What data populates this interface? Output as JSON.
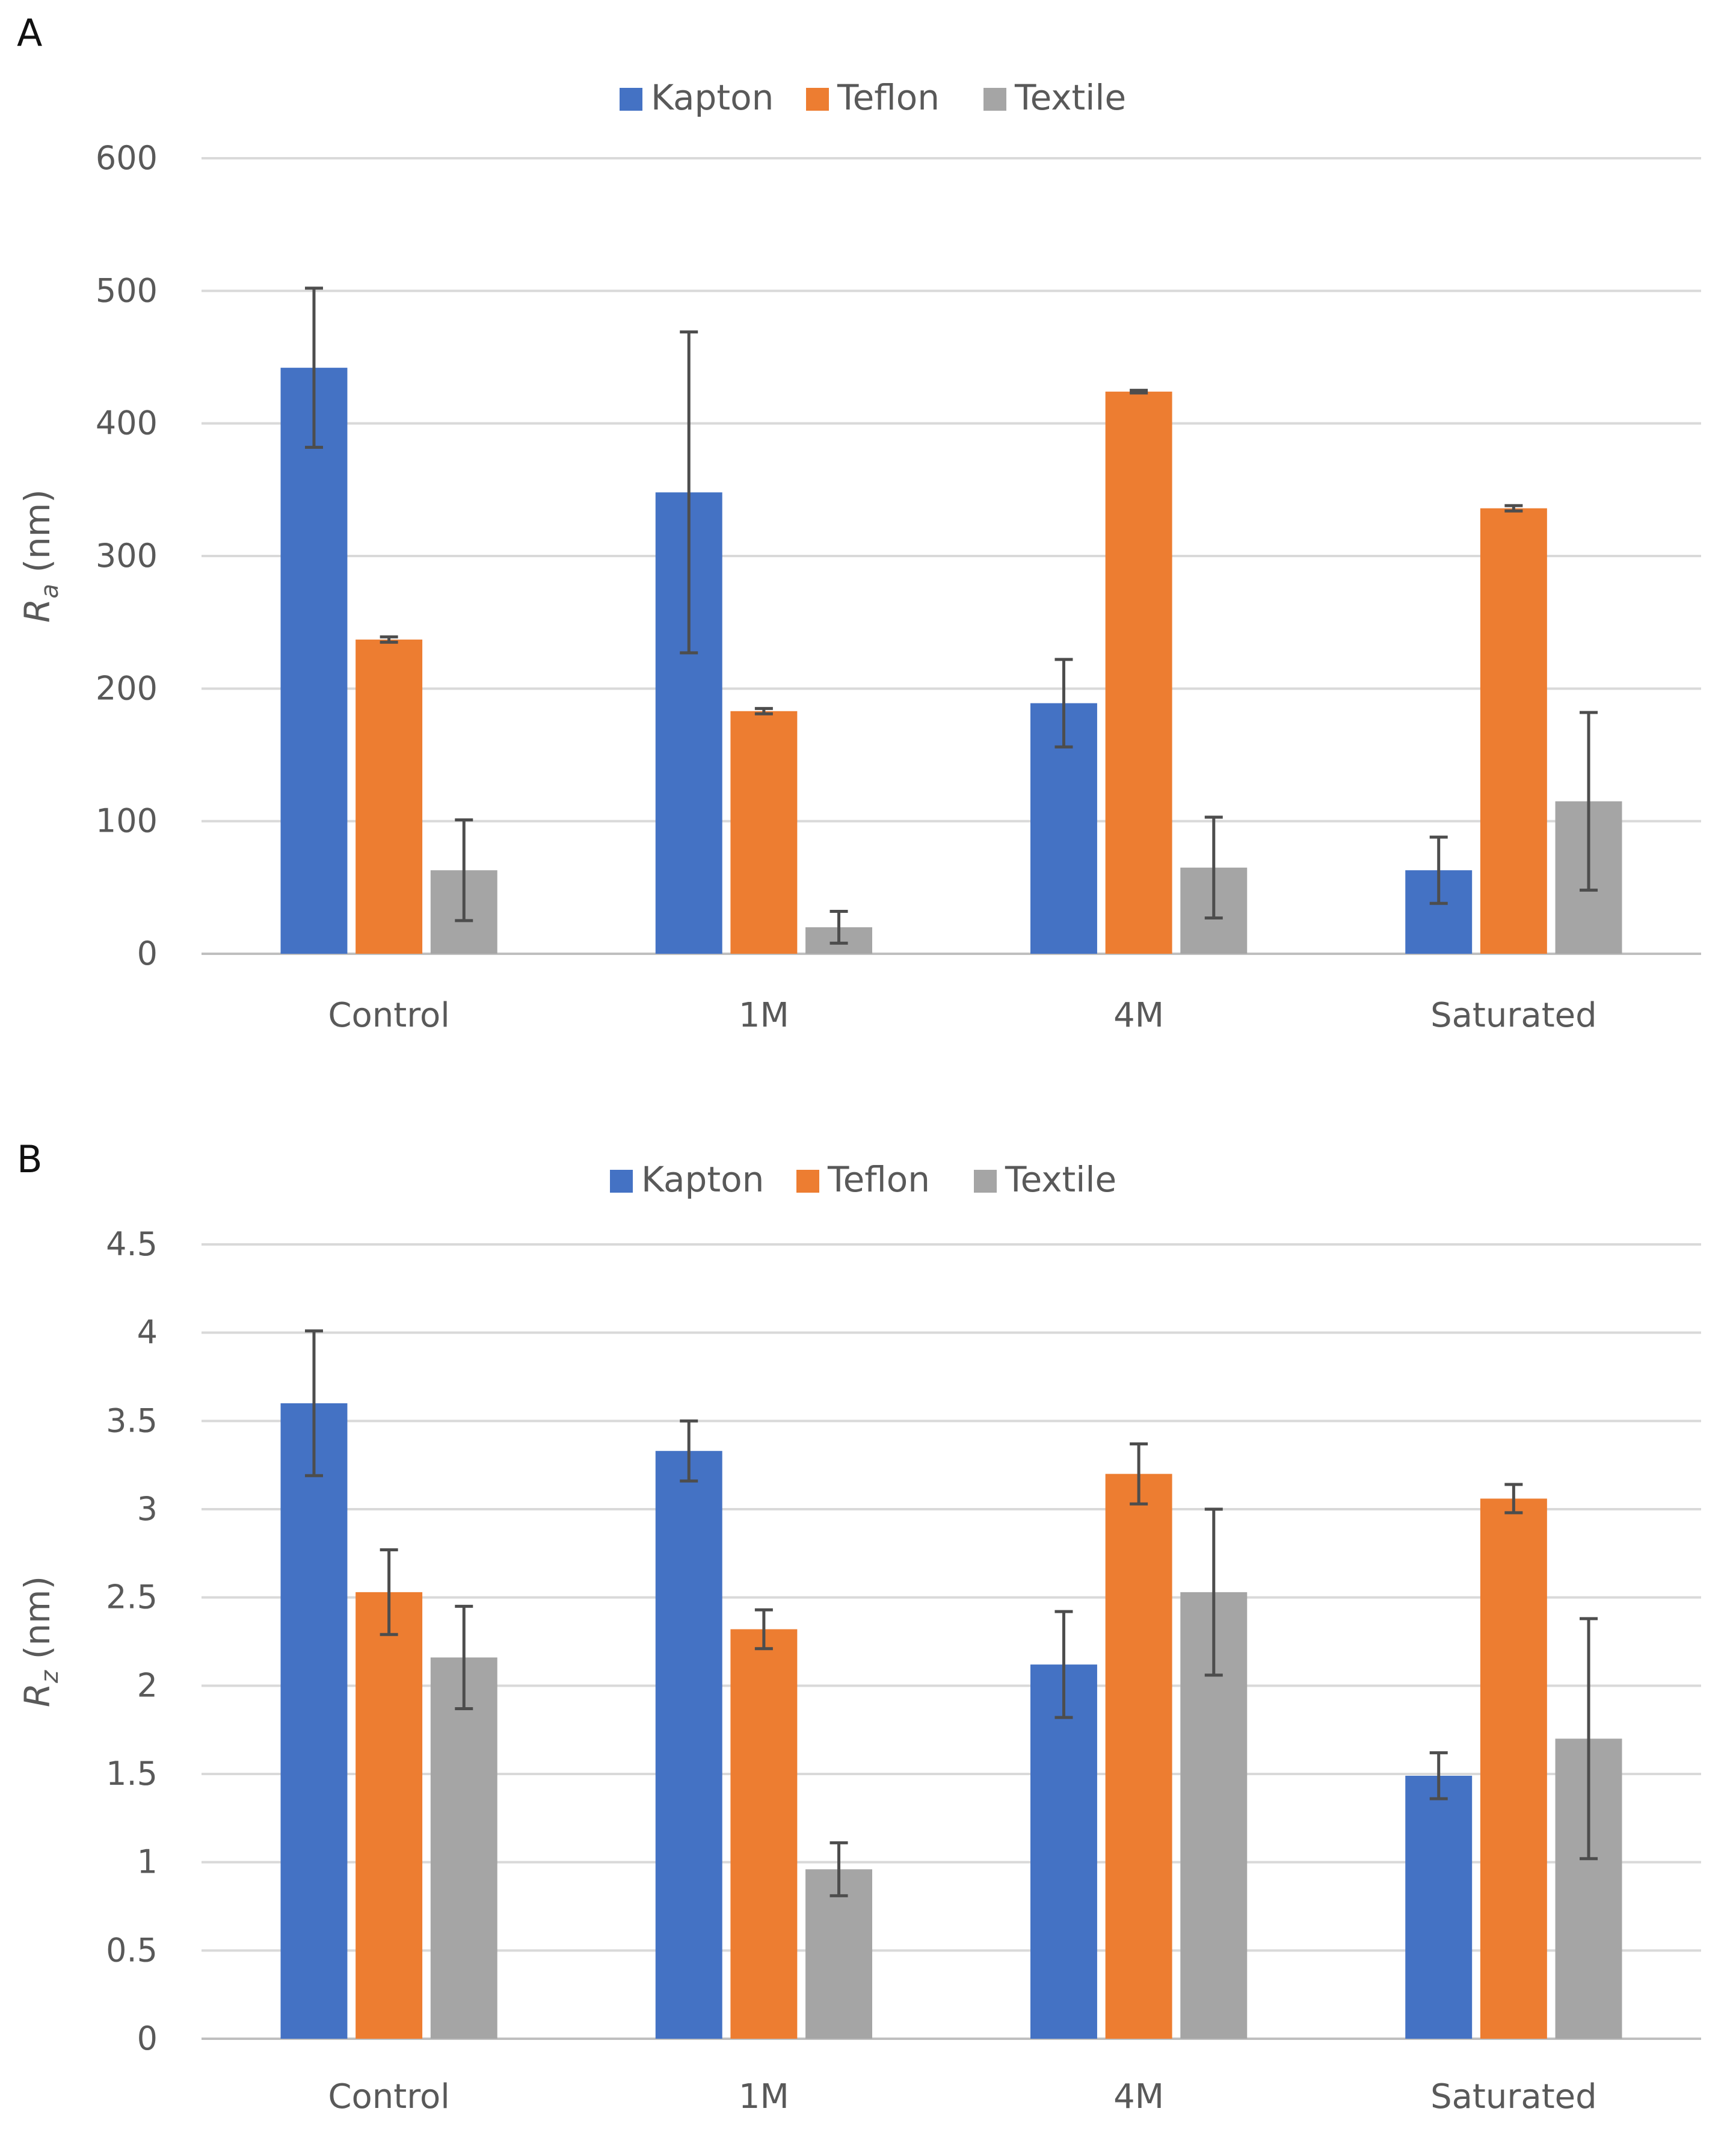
{
  "panels": [
    {
      "letter": "A"
    },
    {
      "letter": "B"
    }
  ],
  "colors": {
    "Kapton": "#4472c4",
    "Teflon": "#ed7d31",
    "Textile": "#a5a5a5",
    "grid": "#d9d9d9",
    "axis": "#bfbfbf",
    "error": "#4d4d4d",
    "text": "#595959"
  },
  "chart_data": [
    {
      "type": "bar",
      "panel": "A",
      "title": "",
      "categories": [
        "Control",
        "1M",
        "4M",
        "Saturated"
      ],
      "series": [
        {
          "name": "Kapton",
          "values": [
            442,
            348,
            189,
            63
          ],
          "errors": [
            60,
            121,
            33,
            25
          ]
        },
        {
          "name": "Teflon",
          "values": [
            237,
            183,
            424,
            336
          ],
          "errors": [
            2,
            2,
            1,
            2
          ]
        },
        {
          "name": "Textile",
          "values": [
            63,
            20,
            65,
            115
          ],
          "errors": [
            38,
            12,
            38,
            67
          ]
        }
      ],
      "ylabel": "Ra (nm)",
      "ylabel_main": "R",
      "ylabel_sub": "a",
      "ylabel_unit": " (nm)",
      "ylim": [
        0,
        600
      ],
      "yticks": [
        0,
        100,
        200,
        300,
        400,
        500,
        600
      ],
      "ytick_labels": [
        "0",
        "100",
        "200",
        "300",
        "400",
        "500",
        "600"
      ],
      "legend": "top-center",
      "grid": true
    },
    {
      "type": "bar",
      "panel": "B",
      "title": "",
      "categories": [
        "Control",
        "1M",
        "4M",
        "Saturated"
      ],
      "series": [
        {
          "name": "Kapton",
          "values": [
            3.6,
            3.33,
            2.12,
            1.49
          ],
          "errors": [
            0.41,
            0.17,
            0.3,
            0.13
          ]
        },
        {
          "name": "Teflon",
          "values": [
            2.53,
            2.32,
            3.2,
            3.06
          ],
          "errors": [
            0.24,
            0.11,
            0.17,
            0.08
          ]
        },
        {
          "name": "Textile",
          "values": [
            2.16,
            0.96,
            2.53,
            1.7
          ],
          "errors": [
            0.29,
            0.15,
            0.47,
            0.68
          ]
        }
      ],
      "ylabel": "Rz (nm)",
      "ylabel_main": "R",
      "ylabel_sub": "z",
      "ylabel_unit": " (nm)",
      "ylim": [
        0,
        4.5
      ],
      "yticks": [
        0,
        0.5,
        1,
        1.5,
        2,
        2.5,
        3,
        3.5,
        4,
        4.5
      ],
      "ytick_labels": [
        "0",
        "0.5",
        "1",
        "1.5",
        "2",
        "2.5",
        "3",
        "3.5",
        "4",
        "4.5"
      ],
      "legend": "top-center",
      "grid": true
    }
  ]
}
